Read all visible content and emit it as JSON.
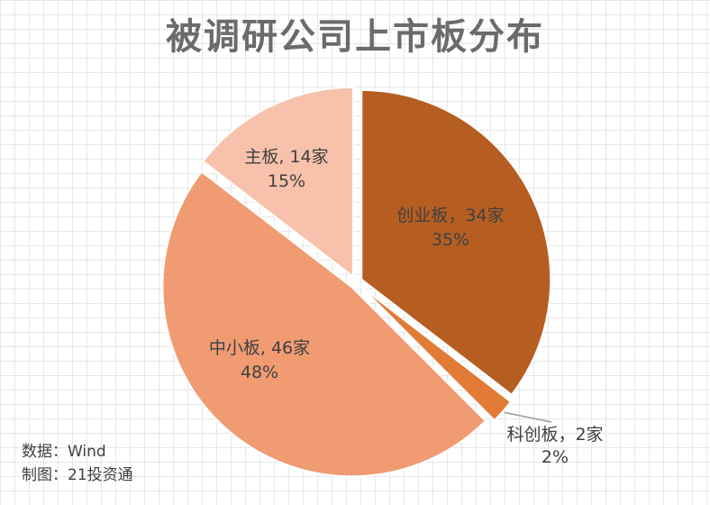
{
  "title": "被调研公司上市板分布",
  "source_line": "数据：Wind",
  "credit_line": "制图：21投资通",
  "chart_data": {
    "type": "pie",
    "title": "被调研公司上市板分布",
    "slices": [
      {
        "label": "创业板，34家",
        "percent_label": "35%",
        "value": 34,
        "color": "#b65e22"
      },
      {
        "label": "科创板，2家",
        "percent_label": "2%",
        "value": 2,
        "color": "#e07a35"
      },
      {
        "label": "中小板, 46家",
        "percent_label": "48%",
        "value": 46,
        "color": "#f09b72"
      },
      {
        "label": "主板, 14家",
        "percent_label": "15%",
        "value": 14,
        "color": "#f7c1ab"
      }
    ]
  }
}
